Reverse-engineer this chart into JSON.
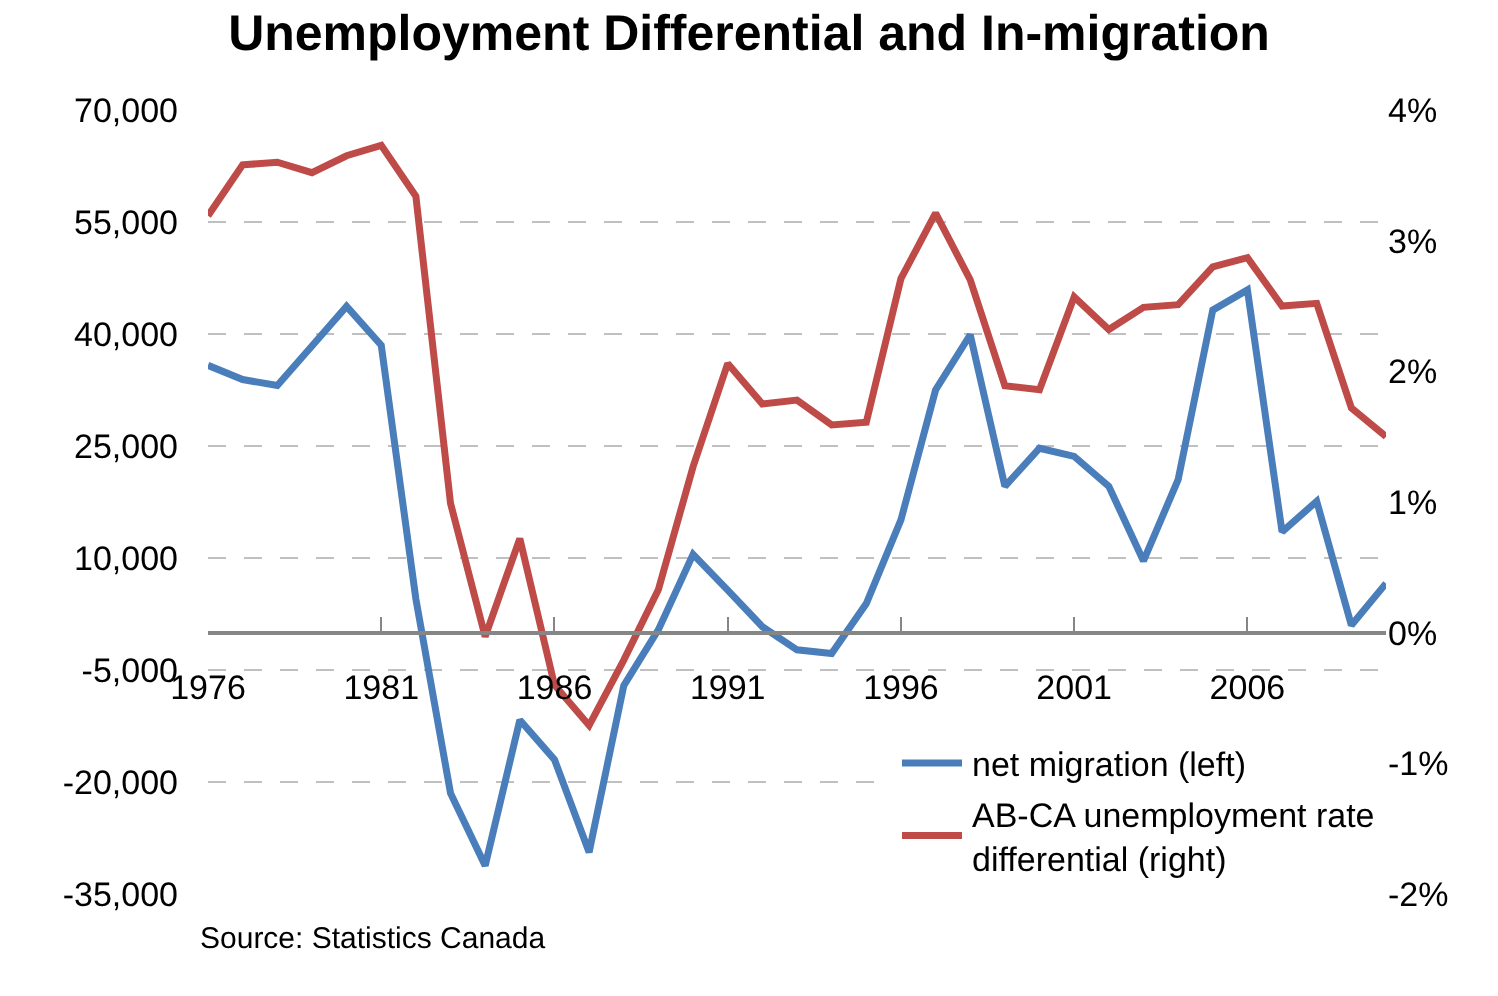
{
  "chart_data": {
    "type": "line",
    "title": "Unemployment Differential and In-migration",
    "x": [
      1976,
      1977,
      1978,
      1979,
      1980,
      1981,
      1982,
      1983,
      1984,
      1985,
      1986,
      1987,
      1988,
      1989,
      1990,
      1991,
      1992,
      1993,
      1994,
      1995,
      1996,
      1997,
      1998,
      1999,
      2000,
      2001,
      2002,
      2003,
      2004,
      2005,
      2006,
      2007,
      2008,
      2009,
      2010
    ],
    "series": [
      {
        "name": "net migration (left)",
        "color": "#4a7ebb",
        "values": [
          35800,
          33900,
          33100,
          38400,
          43700,
          38500,
          4500,
          -21500,
          -31200,
          -11700,
          -17000,
          -29400,
          -7100,
          400,
          10500,
          5700,
          800,
          -2300,
          -2800,
          3900,
          15100,
          32500,
          39900,
          19600,
          24700,
          23600,
          19600,
          9600,
          20500,
          43200,
          45900,
          13500,
          17600,
          1000,
          6600
        ]
      },
      {
        "name": "AB-CA unemployment rate\ndifferential (right)",
        "color": "#be4b48",
        "axis": "y2",
        "values": [
          3.19,
          3.58,
          3.6,
          3.52,
          3.65,
          3.73,
          3.34,
          0.99,
          -0.03,
          0.72,
          -0.4,
          -0.71,
          -0.21,
          0.33,
          1.27,
          2.06,
          1.75,
          1.78,
          1.59,
          1.61,
          2.71,
          3.21,
          2.7,
          1.89,
          1.86,
          2.57,
          2.32,
          2.49,
          2.51,
          2.8,
          2.87,
          2.5,
          2.52,
          1.72,
          1.5
        ]
      }
    ],
    "xlim": [
      1976,
      2010
    ],
    "xticks": [
      1976,
      1981,
      1986,
      1991,
      1996,
      2001,
      2006
    ],
    "ylim": [
      -35000,
      70000
    ],
    "yticks": [
      {
        "value": -35000,
        "label": "-35,000"
      },
      {
        "value": -20000,
        "label": "-20,000"
      },
      {
        "value": -5000,
        "label": "-5,000"
      },
      {
        "value": 10000,
        "label": "10,000"
      },
      {
        "value": 25000,
        "label": "25,000"
      },
      {
        "value": 40000,
        "label": "40,000"
      },
      {
        "value": 55000,
        "label": "55,000"
      },
      {
        "value": 70000,
        "label": "70,000"
      }
    ],
    "y2lim": [
      -2,
      4
    ],
    "y2ticks": [
      {
        "value": -2,
        "label": "-2%"
      },
      {
        "value": -1,
        "label": "-1%"
      },
      {
        "value": 0,
        "label": "0%"
      },
      {
        "value": 1,
        "label": "1%"
      },
      {
        "value": 2,
        "label": "2%"
      },
      {
        "value": 3,
        "label": "3%"
      },
      {
        "value": 4,
        "label": "4%"
      }
    ],
    "grid": "y",
    "legend": "bottom right",
    "marker": "none",
    "line_style": "solid",
    "annotations": [
      "Source: Statistics Canada"
    ]
  }
}
